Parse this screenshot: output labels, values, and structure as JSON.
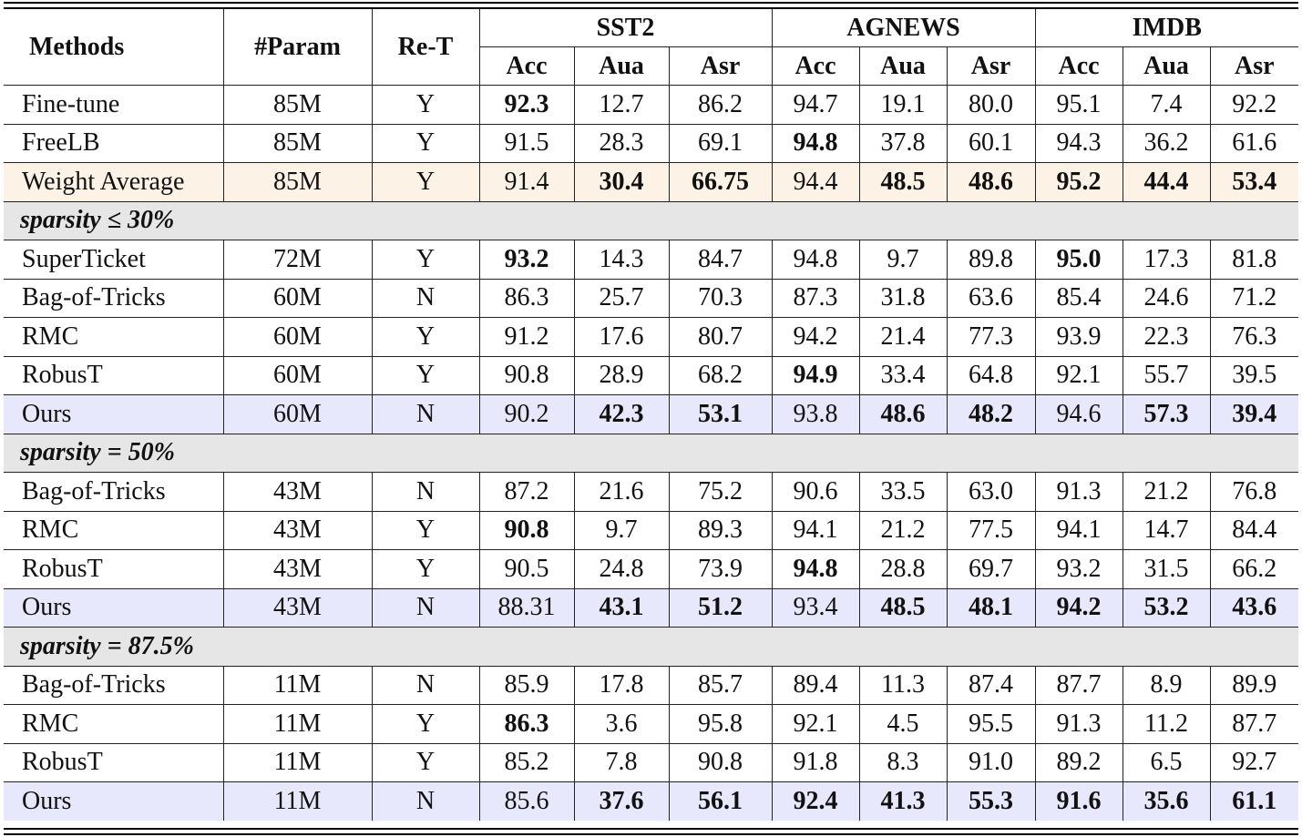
{
  "header": {
    "methods": "Methods",
    "param": "#Param",
    "ret": "Re-T",
    "datasets": [
      "SST2",
      "AGNEWS",
      "IMDB"
    ],
    "metrics": [
      "Acc",
      "Aua",
      "Asr",
      "Acc",
      "Aua",
      "Asr",
      "Acc",
      "Aua",
      "Asr"
    ]
  },
  "top_rows": [
    {
      "method": "Fine-tune",
      "param": "85M",
      "ret": "Y",
      "values": [
        "92.3",
        "12.7",
        "86.2",
        "94.7",
        "19.1",
        "80.0",
        "95.1",
        "7.4",
        "92.2"
      ]
    },
    {
      "method": "FreeLB",
      "param": "85M",
      "ret": "Y",
      "values": [
        "91.5",
        "28.3",
        "69.1",
        "94.8",
        "37.8",
        "60.1",
        "94.3",
        "36.2",
        "61.6"
      ]
    },
    {
      "method": "Weight Average",
      "param": "85M",
      "ret": "Y",
      "values": [
        "91.4",
        "30.4",
        "66.75",
        "94.4",
        "48.5",
        "48.6",
        "95.2",
        "44.4",
        "53.4"
      ]
    }
  ],
  "sections": [
    {
      "label": "sparsity ≤ 30%",
      "rows": [
        {
          "method": "SuperTicket",
          "param": "72M",
          "ret": "Y",
          "values": [
            "93.2",
            "14.3",
            "84.7",
            "94.8",
            "9.7",
            "89.8",
            "95.0",
            "17.3",
            "81.8"
          ]
        },
        {
          "method": "Bag-of-Tricks",
          "param": "60M",
          "ret": "N",
          "values": [
            "86.3",
            "25.7",
            "70.3",
            "87.3",
            "31.8",
            "63.6",
            "85.4",
            "24.6",
            "71.2"
          ]
        },
        {
          "method": "RMC",
          "param": "60M",
          "ret": "Y",
          "values": [
            "91.2",
            "17.6",
            "80.7",
            "94.2",
            "21.4",
            "77.3",
            "93.9",
            "22.3",
            "76.3"
          ]
        },
        {
          "method": "RobusT",
          "param": "60M",
          "ret": "Y",
          "values": [
            "90.8",
            "28.9",
            "68.2",
            "94.9",
            "33.4",
            "64.8",
            "92.1",
            "55.7",
            "39.5"
          ]
        },
        {
          "method": "Ours",
          "param": "60M",
          "ret": "N",
          "values": [
            "90.2",
            "42.3",
            "53.1",
            "93.8",
            "48.6",
            "48.2",
            "94.6",
            "57.3",
            "39.4"
          ]
        }
      ]
    },
    {
      "label": "sparsity = 50%",
      "rows": [
        {
          "method": "Bag-of-Tricks",
          "param": "43M",
          "ret": "N",
          "values": [
            "87.2",
            "21.6",
            "75.2",
            "90.6",
            "33.5",
            "63.0",
            "91.3",
            "21.2",
            "76.8"
          ]
        },
        {
          "method": "RMC",
          "param": "43M",
          "ret": "Y",
          "values": [
            "90.8",
            "9.7",
            "89.3",
            "94.1",
            "21.2",
            "77.5",
            "94.1",
            "14.7",
            "84.4"
          ]
        },
        {
          "method": "RobusT",
          "param": "43M",
          "ret": "Y",
          "values": [
            "90.5",
            "24.8",
            "73.9",
            "94.8",
            "28.8",
            "69.7",
            "93.2",
            "31.5",
            "66.2"
          ]
        },
        {
          "method": "Ours",
          "param": "43M",
          "ret": "N",
          "values": [
            "88.31",
            "43.1",
            "51.2",
            "93.4",
            "48.5",
            "48.1",
            "94.2",
            "53.2",
            "43.6"
          ]
        }
      ]
    },
    {
      "label": "sparsity = 87.5%",
      "rows": [
        {
          "method": "Bag-of-Tricks",
          "param": "11M",
          "ret": "N",
          "values": [
            "85.9",
            "17.8",
            "85.7",
            "89.4",
            "11.3",
            "87.4",
            "87.7",
            "8.9",
            "89.9"
          ]
        },
        {
          "method": "RMC",
          "param": "11M",
          "ret": "Y",
          "values": [
            "86.3",
            "3.6",
            "95.8",
            "92.1",
            "4.5",
            "95.5",
            "91.3",
            "11.2",
            "87.7"
          ]
        },
        {
          "method": "RobusT",
          "param": "11M",
          "ret": "Y",
          "values": [
            "85.2",
            "7.8",
            "90.8",
            "91.8",
            "8.3",
            "91.0",
            "89.2",
            "6.5",
            "92.7"
          ]
        },
        {
          "method": "Ours",
          "param": "11M",
          "ret": "N",
          "values": [
            "85.6",
            "37.6",
            "56.1",
            "92.4",
            "41.3",
            "55.3",
            "91.6",
            "35.6",
            "61.1"
          ]
        }
      ]
    }
  ]
}
